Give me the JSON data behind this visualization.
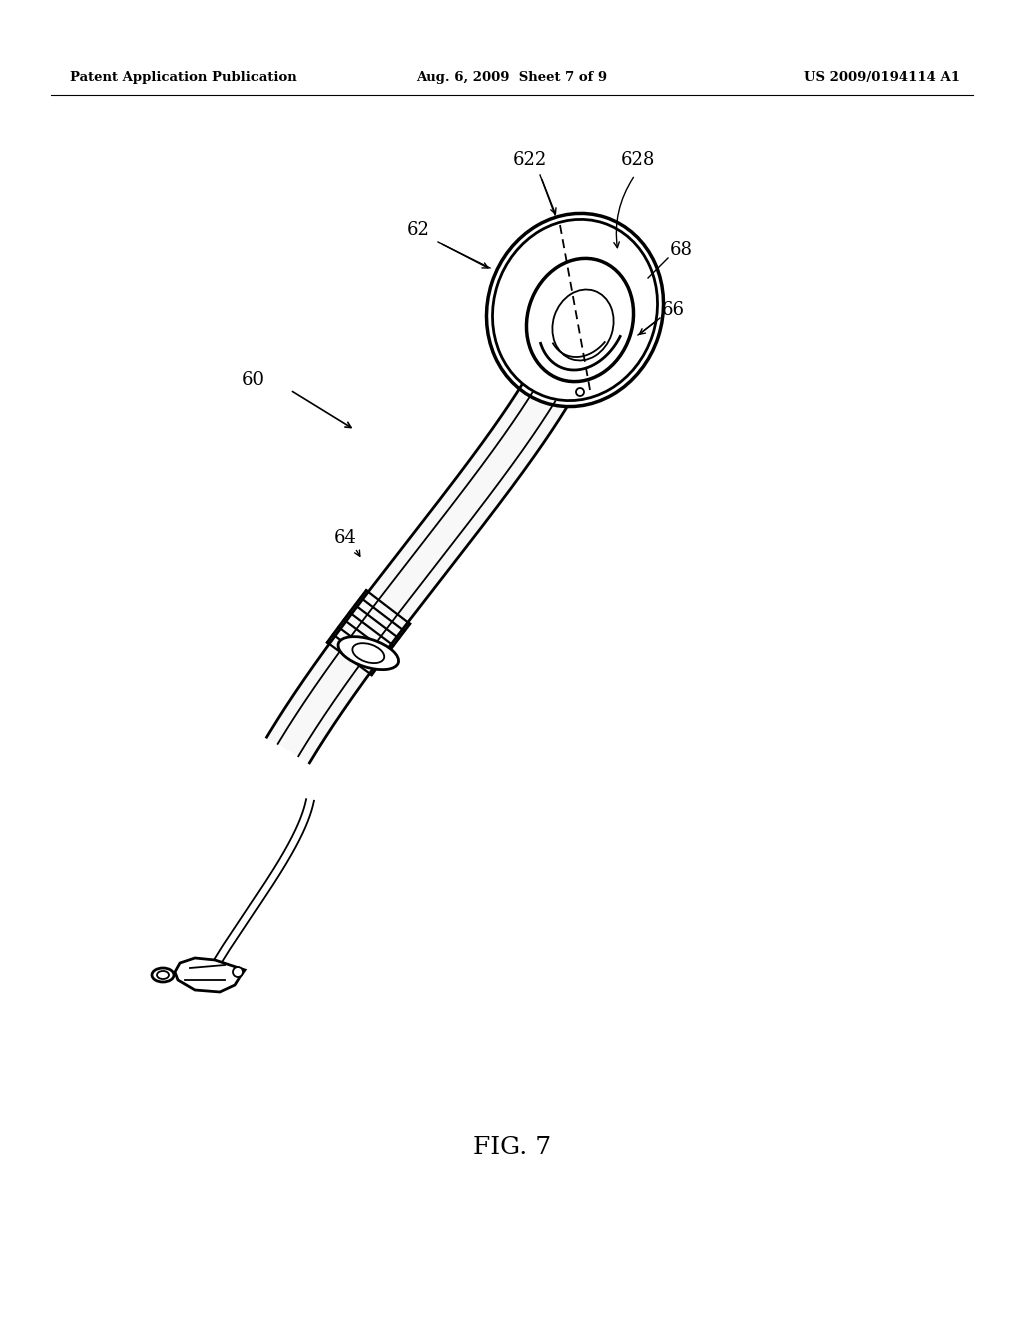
{
  "header_left": "Patent Application Publication",
  "header_center": "Aug. 6, 2009  Sheet 7 of 9",
  "header_right": "US 2009/0194114 A1",
  "background_color": "#ffffff",
  "line_color": "#000000",
  "fig_label": "FIG. 7",
  "figsize": [
    10.24,
    13.2
  ],
  "dpi": 100
}
